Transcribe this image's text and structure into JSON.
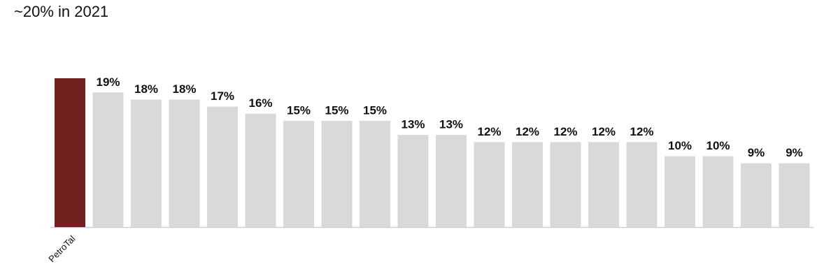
{
  "chart_data": {
    "type": "bar",
    "title": "~20% in 2021",
    "categories": [
      "PetroTal",
      null,
      null,
      null,
      null,
      null,
      null,
      null,
      null,
      null,
      null,
      null,
      null,
      null,
      null,
      null,
      null,
      null,
      null,
      null
    ],
    "values": [
      21,
      19,
      18,
      18,
      17,
      16,
      15,
      15,
      15,
      13,
      13,
      12,
      12,
      12,
      12,
      12,
      10,
      10,
      9,
      9
    ],
    "value_labels": [
      null,
      "19%",
      "18%",
      "18%",
      "17%",
      "16%",
      "15%",
      "15%",
      "15%",
      "13%",
      "13%",
      "12%",
      "12%",
      "12%",
      "12%",
      "12%",
      "10%",
      "10%",
      "9%",
      "9%"
    ],
    "colors": [
      "#722020",
      "#d9d9d9",
      "#d9d9d9",
      "#d9d9d9",
      "#d9d9d9",
      "#d9d9d9",
      "#d9d9d9",
      "#d9d9d9",
      "#d9d9d9",
      "#d9d9d9",
      "#d9d9d9",
      "#d9d9d9",
      "#d9d9d9",
      "#d9d9d9",
      "#d9d9d9",
      "#d9d9d9",
      "#d9d9d9",
      "#d9d9d9",
      "#d9d9d9",
      "#d9d9d9"
    ]
  }
}
